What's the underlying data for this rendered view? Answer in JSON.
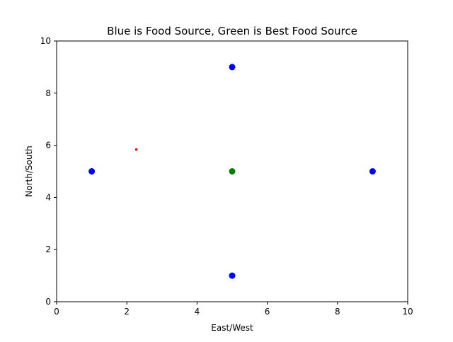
{
  "chart_data": {
    "type": "scatter",
    "title": "Blue is Food Source, Green is Best Food Source",
    "xlabel": "East/West",
    "ylabel": "North/South",
    "xlim": [
      0,
      10
    ],
    "ylim": [
      0,
      10
    ],
    "xticks": [
      0,
      2,
      4,
      6,
      8,
      10
    ],
    "yticks": [
      0,
      2,
      4,
      6,
      8,
      10
    ],
    "grid": false,
    "series": [
      {
        "color": "#0000ff",
        "marker": "large-dot",
        "points": [
          {
            "x": 5,
            "y": 9
          },
          {
            "x": 1,
            "y": 5
          },
          {
            "x": 9,
            "y": 5
          },
          {
            "x": 5,
            "y": 1
          }
        ]
      },
      {
        "color": "#008000",
        "marker": "large-dot",
        "points": [
          {
            "x": 5,
            "y": 5
          }
        ]
      },
      {
        "color": "#ff0000",
        "marker": "small-dot",
        "points": [
          {
            "x": 2.27,
            "y": 5.84
          }
        ]
      }
    ]
  }
}
